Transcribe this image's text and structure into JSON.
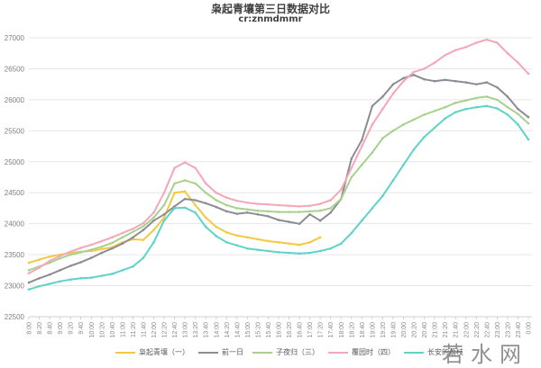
{
  "chart_data": {
    "type": "line",
    "title": "枭起青壤第三日数据对比",
    "subtitle": "cr:znmdmmr",
    "xlabel": "",
    "ylabel": "",
    "ylim": [
      22500,
      27000
    ],
    "yticks": [
      22500,
      23000,
      23500,
      24000,
      24500,
      25000,
      25500,
      26000,
      26500,
      27000
    ],
    "grid": true,
    "legend_position": "bottom",
    "categories": [
      "8:00",
      "8:20",
      "8:40",
      "9:00",
      "9:20",
      "9:40",
      "10:00",
      "10:20",
      "10:40",
      "11:00",
      "11:20",
      "11:40",
      "12:00",
      "12:20",
      "12:40",
      "13:00",
      "13:20",
      "13:40",
      "14:00",
      "14:20",
      "14:40",
      "15:00",
      "15:20",
      "15:40",
      "16:00",
      "16:20",
      "16:40",
      "17:00",
      "17:20",
      "17:40",
      "18:00",
      "18:20",
      "18:40",
      "19:00",
      "19:20",
      "19:40",
      "20:00",
      "20:20",
      "20:40",
      "21:00",
      "21:20",
      "21:40",
      "22:00",
      "22:20",
      "22:40",
      "23:00",
      "23:20",
      "23:40",
      "0:00"
    ],
    "series": [
      {
        "name": "枭起青壤（一）",
        "color": "#f5c842",
        "values": [
          23370,
          23420,
          23470,
          23500,
          23530,
          23550,
          23560,
          23590,
          23620,
          23700,
          23750,
          23740,
          23900,
          24100,
          24500,
          24520,
          24300,
          24100,
          23950,
          23860,
          23810,
          23780,
          23750,
          23720,
          23700,
          23680,
          23660,
          23700,
          23780
        ]
      },
      {
        "name": "前一日",
        "color": "#8c8c96",
        "values": [
          23050,
          23120,
          23180,
          23250,
          23320,
          23380,
          23450,
          23530,
          23600,
          23680,
          23780,
          23900,
          24050,
          24150,
          24280,
          24400,
          24380,
          24330,
          24270,
          24200,
          24160,
          24180,
          24150,
          24120,
          24060,
          24030,
          24000,
          24150,
          24050,
          24180,
          24400,
          25050,
          25350,
          25900,
          26050,
          26250,
          26350,
          26400,
          26330,
          26300,
          26320,
          26300,
          26280,
          26250,
          26280,
          26200,
          26050,
          25850,
          25720
        ]
      },
      {
        "name": "子夜归（三）",
        "color": "#a9d18e",
        "values": [
          23250,
          23310,
          23370,
          23440,
          23500,
          23540,
          23580,
          23630,
          23690,
          23780,
          23870,
          23960,
          24100,
          24300,
          24650,
          24700,
          24650,
          24500,
          24380,
          24300,
          24250,
          24230,
          24210,
          24200,
          24190,
          24190,
          24190,
          24200,
          24210,
          24250,
          24400,
          24750,
          24950,
          25150,
          25380,
          25500,
          25600,
          25680,
          25760,
          25820,
          25880,
          25950,
          25990,
          26030,
          26050,
          26000,
          25880,
          25770,
          25620
        ]
      },
      {
        "name": "覆园时（四）",
        "color": "#f4a7b9",
        "values": [
          23200,
          23290,
          23400,
          23480,
          23550,
          23610,
          23660,
          23720,
          23780,
          23850,
          23920,
          24010,
          24180,
          24500,
          24900,
          24990,
          24900,
          24650,
          24500,
          24420,
          24370,
          24340,
          24320,
          24310,
          24300,
          24290,
          24280,
          24290,
          24320,
          24380,
          24550,
          24900,
          25250,
          25600,
          25850,
          26100,
          26300,
          26450,
          26500,
          26600,
          26720,
          26800,
          26850,
          26920,
          26970,
          26920,
          26750,
          26600,
          26420
        ]
      },
      {
        "name": "长安的荔枝",
        "color": "#5fd3c7",
        "values": [
          22940,
          22990,
          23030,
          23070,
          23100,
          23120,
          23130,
          23160,
          23190,
          23250,
          23310,
          23450,
          23700,
          24050,
          24250,
          24260,
          24180,
          23950,
          23800,
          23700,
          23650,
          23600,
          23580,
          23560,
          23540,
          23530,
          23520,
          23530,
          23560,
          23600,
          23680,
          23850,
          24050,
          24250,
          24450,
          24700,
          24950,
          25200,
          25400,
          25550,
          25700,
          25800,
          25850,
          25880,
          25900,
          25860,
          25760,
          25600,
          25360
        ]
      }
    ]
  },
  "watermark": "若水网"
}
